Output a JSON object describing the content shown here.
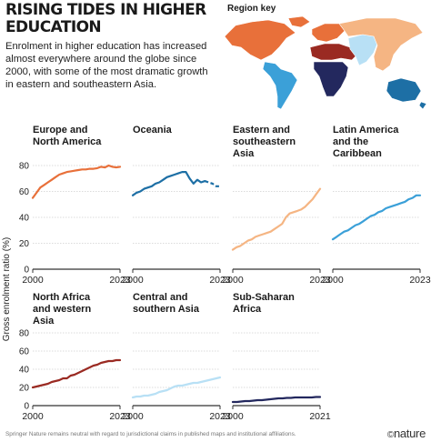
{
  "header": {
    "title": "Rising tides in higher education",
    "subtitle": "Enrolment in higher education has increased almost everywhere around the globe since 2000, with some of the most dramatic growth in eastern and southeastern Asia.",
    "region_key_label": "Region key"
  },
  "footer": {
    "disclaimer": "Springer Nature remains neutral with regard to jurisdictional claims in published maps and institutional affiliations.",
    "brand": "nature",
    "brand_mark": "©"
  },
  "map_colors": {
    "europe_north_america": "#e8703a",
    "oceania": "#1d6fa5",
    "eastern_southeastern_asia": "#f5b583",
    "latin_america_caribbean": "#3ba0d8",
    "north_africa_western_asia": "#9a2a22",
    "central_southern_asia": "#b8e0f5",
    "sub_saharan_africa": "#23285e"
  },
  "shared_axis": {
    "ylabel": "Gross enrolment ratio (%)",
    "ylim": [
      0,
      80
    ],
    "yticks": [
      "0",
      "20",
      "40",
      "60",
      "80"
    ],
    "grid": true
  },
  "chart_data": [
    {
      "type": "line",
      "title": "Europe and North America",
      "color": "#e8703a",
      "xticks": [
        "2000",
        "2023"
      ],
      "xlim": [
        2000,
        2023
      ],
      "x": [
        2000,
        2001,
        2002,
        2003,
        2004,
        2005,
        2006,
        2007,
        2008,
        2009,
        2010,
        2011,
        2012,
        2013,
        2014,
        2015,
        2016,
        2017,
        2018,
        2019,
        2020,
        2021,
        2022,
        2023
      ],
      "values": [
        55,
        59,
        63,
        65,
        67,
        69,
        71,
        73,
        74,
        75,
        75.5,
        76,
        76.5,
        77,
        77,
        77.5,
        77.5,
        78,
        79,
        78.5,
        80,
        79,
        78.5,
        79
      ]
    },
    {
      "type": "line",
      "title": "Oceania",
      "color": "#1d6fa5",
      "xticks": [
        "2000",
        "2023"
      ],
      "xlim": [
        2000,
        2023
      ],
      "x": [
        2000,
        2001,
        2002,
        2003,
        2004,
        2005,
        2006,
        2007,
        2008,
        2009,
        2010,
        2011,
        2012,
        2013,
        2014,
        2015,
        2016,
        2017,
        2018,
        2019,
        2020,
        2021,
        2022,
        2023
      ],
      "values": [
        57,
        59,
        60,
        62,
        63,
        64,
        66,
        67,
        69,
        71,
        72,
        73,
        74,
        75,
        75,
        70,
        66,
        69,
        67,
        68,
        67,
        66,
        64,
        64
      ],
      "dashed_from": 2019
    },
    {
      "type": "line",
      "title": "Eastern and southeastern Asia",
      "color": "#f5b583",
      "xticks": [
        "2000",
        "2023"
      ],
      "xlim": [
        2000,
        2023
      ],
      "x": [
        2000,
        2001,
        2002,
        2003,
        2004,
        2005,
        2006,
        2007,
        2008,
        2009,
        2010,
        2011,
        2012,
        2013,
        2014,
        2015,
        2016,
        2017,
        2018,
        2019,
        2020,
        2021,
        2022,
        2023
      ],
      "values": [
        15,
        17,
        18,
        20,
        22,
        23,
        25,
        26,
        27,
        28,
        29,
        31,
        33,
        35,
        40,
        43,
        44,
        45,
        46,
        48,
        51,
        54,
        58,
        62
      ]
    },
    {
      "type": "line",
      "title": "Latin America and the Caribbean",
      "color": "#3ba0d8",
      "xticks": [
        "2000",
        "2023"
      ],
      "xlim": [
        2000,
        2023
      ],
      "x": [
        2000,
        2001,
        2002,
        2003,
        2004,
        2005,
        2006,
        2007,
        2008,
        2009,
        2010,
        2011,
        2012,
        2013,
        2014,
        2015,
        2016,
        2017,
        2018,
        2019,
        2020,
        2021,
        2022,
        2023
      ],
      "values": [
        23,
        25,
        27,
        29,
        30,
        32,
        34,
        35,
        37,
        39,
        41,
        42,
        44,
        45,
        47,
        48,
        49,
        50,
        51,
        52,
        54,
        55,
        57,
        57
      ]
    },
    {
      "type": "line",
      "title": "North Africa and western Asia",
      "color": "#9a2a22",
      "xticks": [
        "2000",
        "2023"
      ],
      "xlim": [
        2000,
        2023
      ],
      "x": [
        2000,
        2001,
        2002,
        2003,
        2004,
        2005,
        2006,
        2007,
        2008,
        2009,
        2010,
        2011,
        2012,
        2013,
        2014,
        2015,
        2016,
        2017,
        2018,
        2019,
        2020,
        2021,
        2022,
        2023
      ],
      "values": [
        20,
        21,
        22,
        23,
        24,
        26,
        27,
        28,
        30,
        30,
        33,
        34,
        36,
        38,
        40,
        42,
        44,
        45,
        47,
        48,
        49,
        49,
        50,
        50
      ]
    },
    {
      "type": "line",
      "title": "Central and southern Asia",
      "color": "#b8e0f5",
      "xticks": [
        "2000",
        "2023"
      ],
      "xlim": [
        2000,
        2023
      ],
      "x": [
        2000,
        2001,
        2002,
        2003,
        2004,
        2005,
        2006,
        2007,
        2008,
        2009,
        2010,
        2011,
        2012,
        2013,
        2014,
        2015,
        2016,
        2017,
        2018,
        2019,
        2020,
        2021,
        2022,
        2023
      ],
      "values": [
        9,
        10,
        10,
        11,
        11,
        12,
        13,
        15,
        16,
        17,
        19,
        21,
        22,
        22,
        23,
        24,
        25,
        25,
        26,
        27,
        28,
        29,
        30,
        31
      ]
    },
    {
      "type": "line",
      "title": "Sub-Saharan Africa",
      "color": "#23285e",
      "xticks": [
        "2000",
        "2021"
      ],
      "xlim": [
        2000,
        2021
      ],
      "x": [
        2000,
        2001,
        2002,
        2003,
        2004,
        2005,
        2006,
        2007,
        2008,
        2009,
        2010,
        2011,
        2012,
        2013,
        2014,
        2015,
        2016,
        2017,
        2018,
        2019,
        2020,
        2021
      ],
      "values": [
        4,
        4,
        4.5,
        5,
        5,
        5.5,
        6,
        6,
        6.5,
        7,
        7.5,
        8,
        8,
        8.5,
        8.5,
        9,
        9,
        9,
        9,
        9,
        9.5,
        9.5
      ]
    }
  ]
}
